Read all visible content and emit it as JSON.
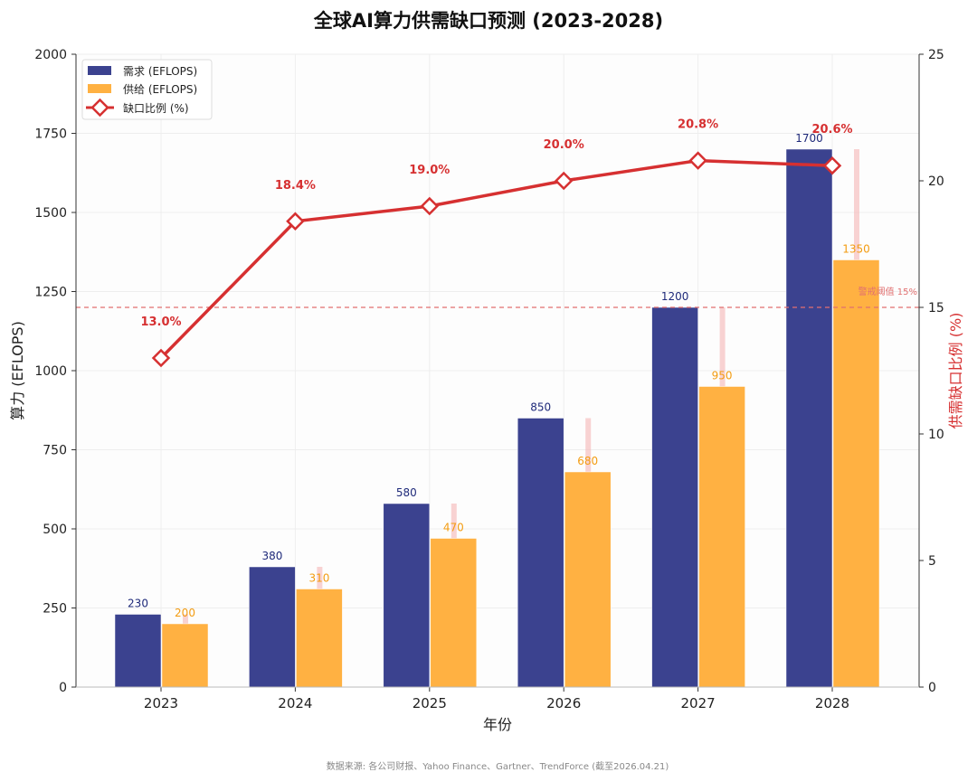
{
  "chart_data": {
    "type": "bar",
    "title": "全球AI算力供需缺口预测 (2023-2028)",
    "xlabel": "年份",
    "ylabel": "算力 (EFLOPS)",
    "ylabel_right": "供需缺口比例 (%)",
    "categories": [
      "2023",
      "2024",
      "2025",
      "2026",
      "2027",
      "2028"
    ],
    "series": [
      {
        "name": "需求 (EFLOPS)",
        "type": "bar",
        "color": "#3b428f",
        "label_color": "#1f2a7a",
        "values": [
          230,
          380,
          580,
          850,
          1200,
          1700
        ]
      },
      {
        "name": "供给 (EFLOPS)",
        "type": "bar",
        "color": "#ffb142",
        "label_color": "#f39c12",
        "values": [
          200,
          310,
          470,
          680,
          950,
          1350
        ]
      },
      {
        "name": "缺口比例 (%)",
        "type": "line",
        "axis": "right",
        "color": "#d63031",
        "values": [
          13.0,
          18.4,
          19.0,
          20.0,
          20.8,
          20.6
        ],
        "labels": [
          "13.0%",
          "18.4%",
          "19.0%",
          "20.0%",
          "20.8%",
          "20.6%"
        ]
      }
    ],
    "ylim": [
      0,
      2000
    ],
    "yticks": [
      0,
      250,
      500,
      750,
      1000,
      1250,
      1500,
      1750,
      2000
    ],
    "ylim_right": [
      0,
      25
    ],
    "yticks_right": [
      0,
      5,
      10,
      15,
      20,
      25
    ],
    "threshold": {
      "value": 15,
      "label": "警戒阈值 15%",
      "color": "#e17070"
    },
    "grid": true,
    "legend": "top-left",
    "source": "数据来源: 各公司财报、Yahoo Finance、Gartner、TrendForce (截至2026.04.21)"
  }
}
